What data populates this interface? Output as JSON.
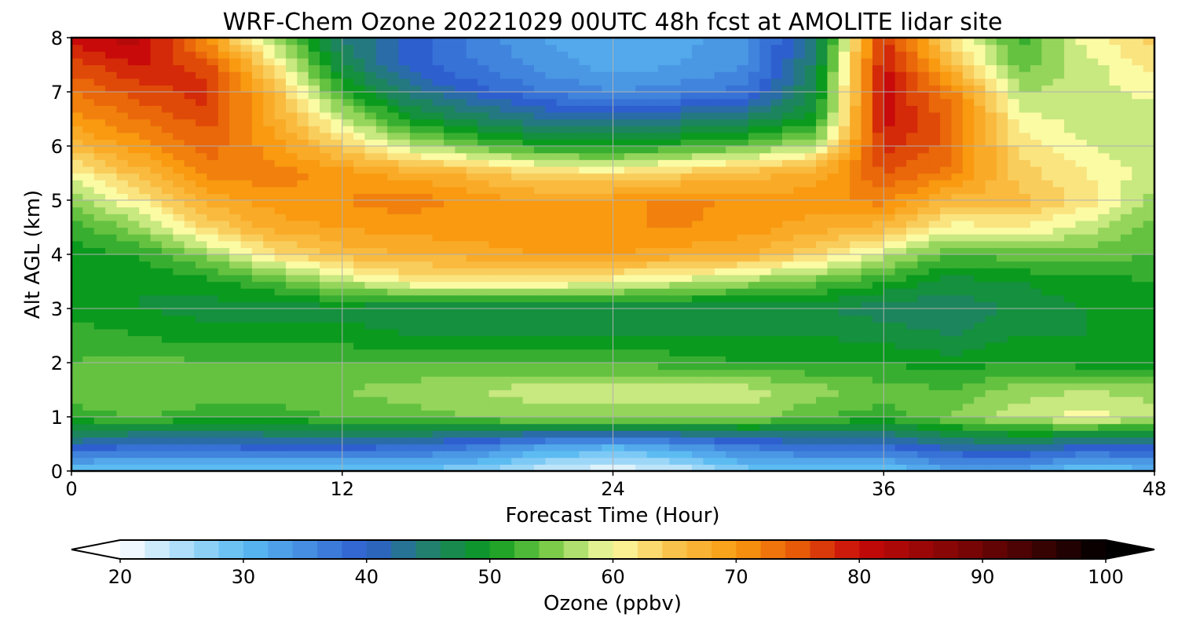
{
  "chart_data": {
    "type": "heatmap",
    "title": "WRF-Chem Ozone  20221029 00UTC 48h fcst at AMOLITE lidar site",
    "xlabel": "Forecast Time (Hour)",
    "ylabel": "Alt AGL (km)",
    "xlim": [
      0,
      48
    ],
    "ylim": [
      0,
      8
    ],
    "x_ticks": [
      "0",
      "12",
      "24",
      "36",
      "48"
    ],
    "y_ticks": [
      "0",
      "1",
      "2",
      "3",
      "4",
      "5",
      "6",
      "7",
      "8"
    ],
    "grid": true,
    "colorbar": {
      "label": "Ozone  (ppbv)",
      "range": [
        20,
        100
      ],
      "extend": "both",
      "ticks": [
        "20",
        "30",
        "40",
        "50",
        "60",
        "70",
        "80",
        "90",
        "100"
      ],
      "stops": [
        {
          "value": 20,
          "color": "#ffffff"
        },
        {
          "value": 30,
          "color": "#5cbcf2"
        },
        {
          "value": 40,
          "color": "#2e5fcf"
        },
        {
          "value": 45,
          "color": "#22806e"
        },
        {
          "value": 50,
          "color": "#0a9a1e"
        },
        {
          "value": 55,
          "color": "#7ccc4a"
        },
        {
          "value": 60,
          "color": "#fbfba4"
        },
        {
          "value": 65,
          "color": "#f9c24a"
        },
        {
          "value": 70,
          "color": "#f99a10"
        },
        {
          "value": 75,
          "color": "#e65a08"
        },
        {
          "value": 80,
          "color": "#c80a0a"
        },
        {
          "value": 90,
          "color": "#6e0404"
        },
        {
          "value": 100,
          "color": "#000000"
        }
      ]
    },
    "grid_x": [
      0,
      3,
      6,
      9,
      12,
      15,
      18,
      21,
      24,
      27,
      30,
      33,
      36,
      39,
      42,
      45,
      48
    ],
    "grid_y": [
      0,
      0.5,
      1,
      1.5,
      2,
      2.5,
      3,
      3.5,
      4,
      4.5,
      5,
      5.5,
      6,
      6.5,
      7,
      7.5,
      8
    ],
    "z": [
      [
        28,
        28,
        28,
        28,
        28,
        28,
        27,
        23,
        21,
        23,
        28,
        28,
        28,
        32,
        32,
        28,
        30
      ],
      [
        42,
        40,
        40,
        41,
        41,
        40,
        38,
        34,
        32,
        35,
        38,
        40,
        40,
        43,
        44,
        42,
        42
      ],
      [
        52,
        53,
        52,
        52,
        53,
        54,
        55,
        56,
        56,
        56,
        56,
        53,
        52,
        55,
        58,
        60,
        58
      ],
      [
        54,
        55,
        54,
        54,
        55,
        56,
        57,
        58,
        58,
        58,
        58,
        56,
        54,
        53,
        56,
        57,
        56
      ],
      [
        53,
        54,
        53,
        53,
        53,
        53,
        53,
        53,
        53,
        52,
        51,
        51,
        51,
        50,
        51,
        50,
        50
      ],
      [
        52,
        51,
        50,
        50,
        50,
        49,
        49,
        49,
        49,
        49,
        49,
        49,
        48,
        47,
        49,
        49,
        49
      ],
      [
        50,
        49,
        48,
        48,
        48,
        47,
        47,
        47,
        47,
        47,
        47,
        47,
        46,
        45,
        48,
        49,
        50
      ],
      [
        49,
        49,
        50,
        53,
        57,
        61,
        61,
        61,
        60,
        58,
        56,
        54,
        51,
        48,
        49,
        50,
        51
      ],
      [
        50,
        51,
        56,
        62,
        66,
        67,
        68,
        69,
        69,
        68,
        67,
        63,
        58,
        53,
        54,
        54,
        53
      ],
      [
        52,
        56,
        63,
        68,
        69,
        70,
        70,
        71,
        71,
        71,
        70,
        68,
        66,
        60,
        61,
        58,
        54
      ],
      [
        56,
        61,
        68,
        70,
        71,
        72,
        70,
        69,
        70,
        72,
        70,
        70,
        72,
        66,
        66,
        62,
        56
      ],
      [
        60,
        66,
        72,
        72,
        70,
        68,
        66,
        63,
        62,
        64,
        66,
        68,
        75,
        72,
        64,
        61,
        58
      ],
      [
        66,
        70,
        74,
        70,
        64,
        58,
        54,
        51,
        50,
        52,
        54,
        58,
        78,
        74,
        62,
        59,
        57
      ],
      [
        70,
        73,
        76,
        68,
        58,
        50,
        46,
        43,
        42,
        44,
        46,
        50,
        80,
        74,
        60,
        58,
        57
      ],
      [
        73,
        76,
        78,
        66,
        52,
        44,
        40,
        37,
        35,
        36,
        38,
        48,
        80,
        72,
        57,
        58,
        60
      ],
      [
        76,
        79,
        76,
        62,
        47,
        40,
        37,
        34,
        32,
        33,
        35,
        46,
        80,
        66,
        54,
        58,
        62
      ],
      [
        80,
        82,
        70,
        56,
        45,
        40,
        36,
        33,
        31,
        32,
        35,
        44,
        78,
        62,
        52,
        60,
        64
      ]
    ]
  }
}
